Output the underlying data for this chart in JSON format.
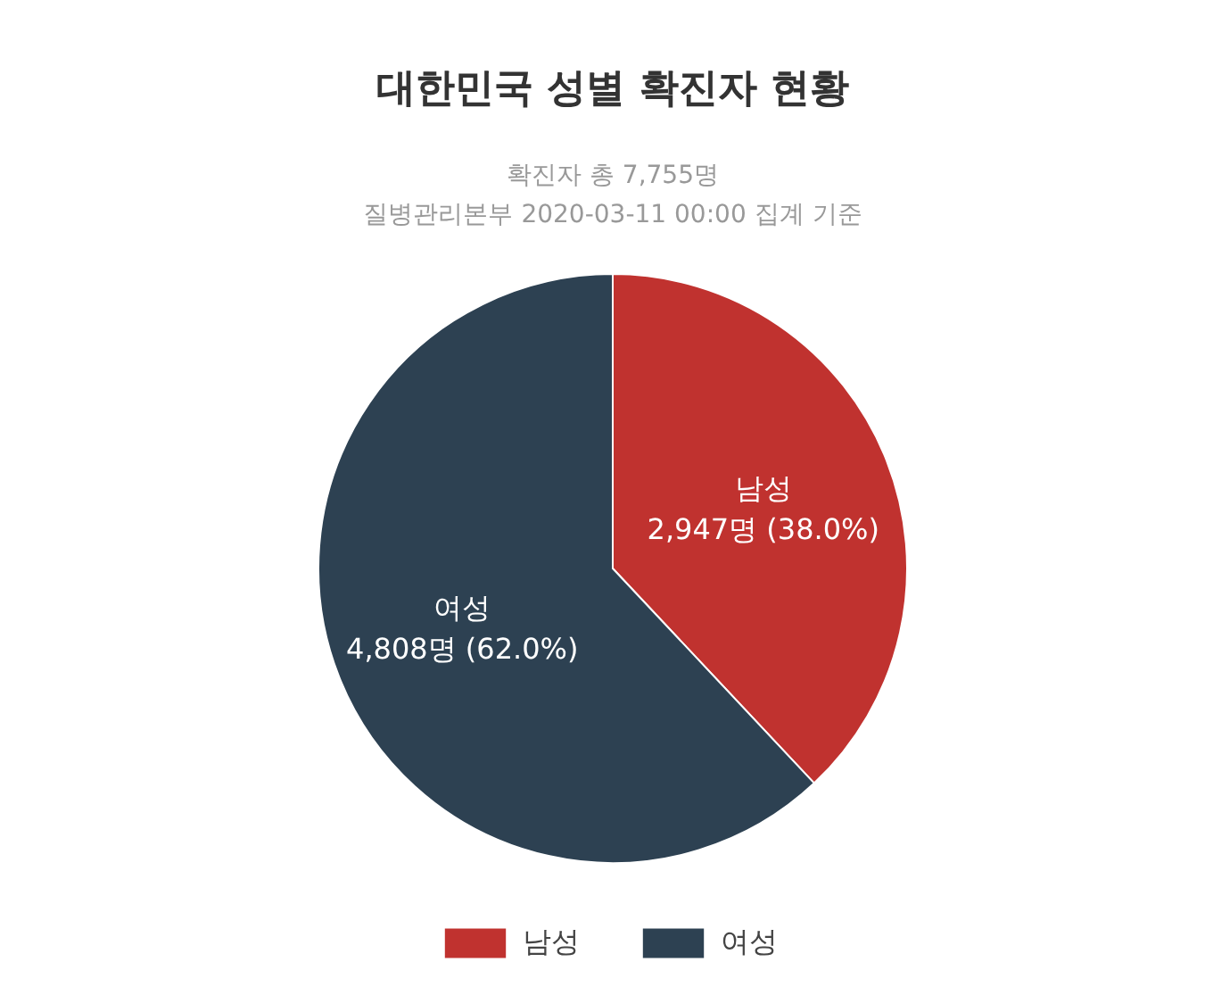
{
  "chart_data": {
    "type": "pie",
    "title": "대한민국 성별 확진자 현황",
    "subtitle": "확진자 총 7,755명",
    "annotations": [
      "질병관리본부 2020-03-11 00:00 집계 기준"
    ],
    "categories": [
      "남성",
      "여성"
    ],
    "values": [
      2947,
      4808
    ],
    "colors": [
      "#c0322f",
      "#2d4152"
    ],
    "value_labels": [
      "2,947명 (38.0%)",
      "4,808명 (62.0%)"
    ],
    "legend": "bottom"
  }
}
